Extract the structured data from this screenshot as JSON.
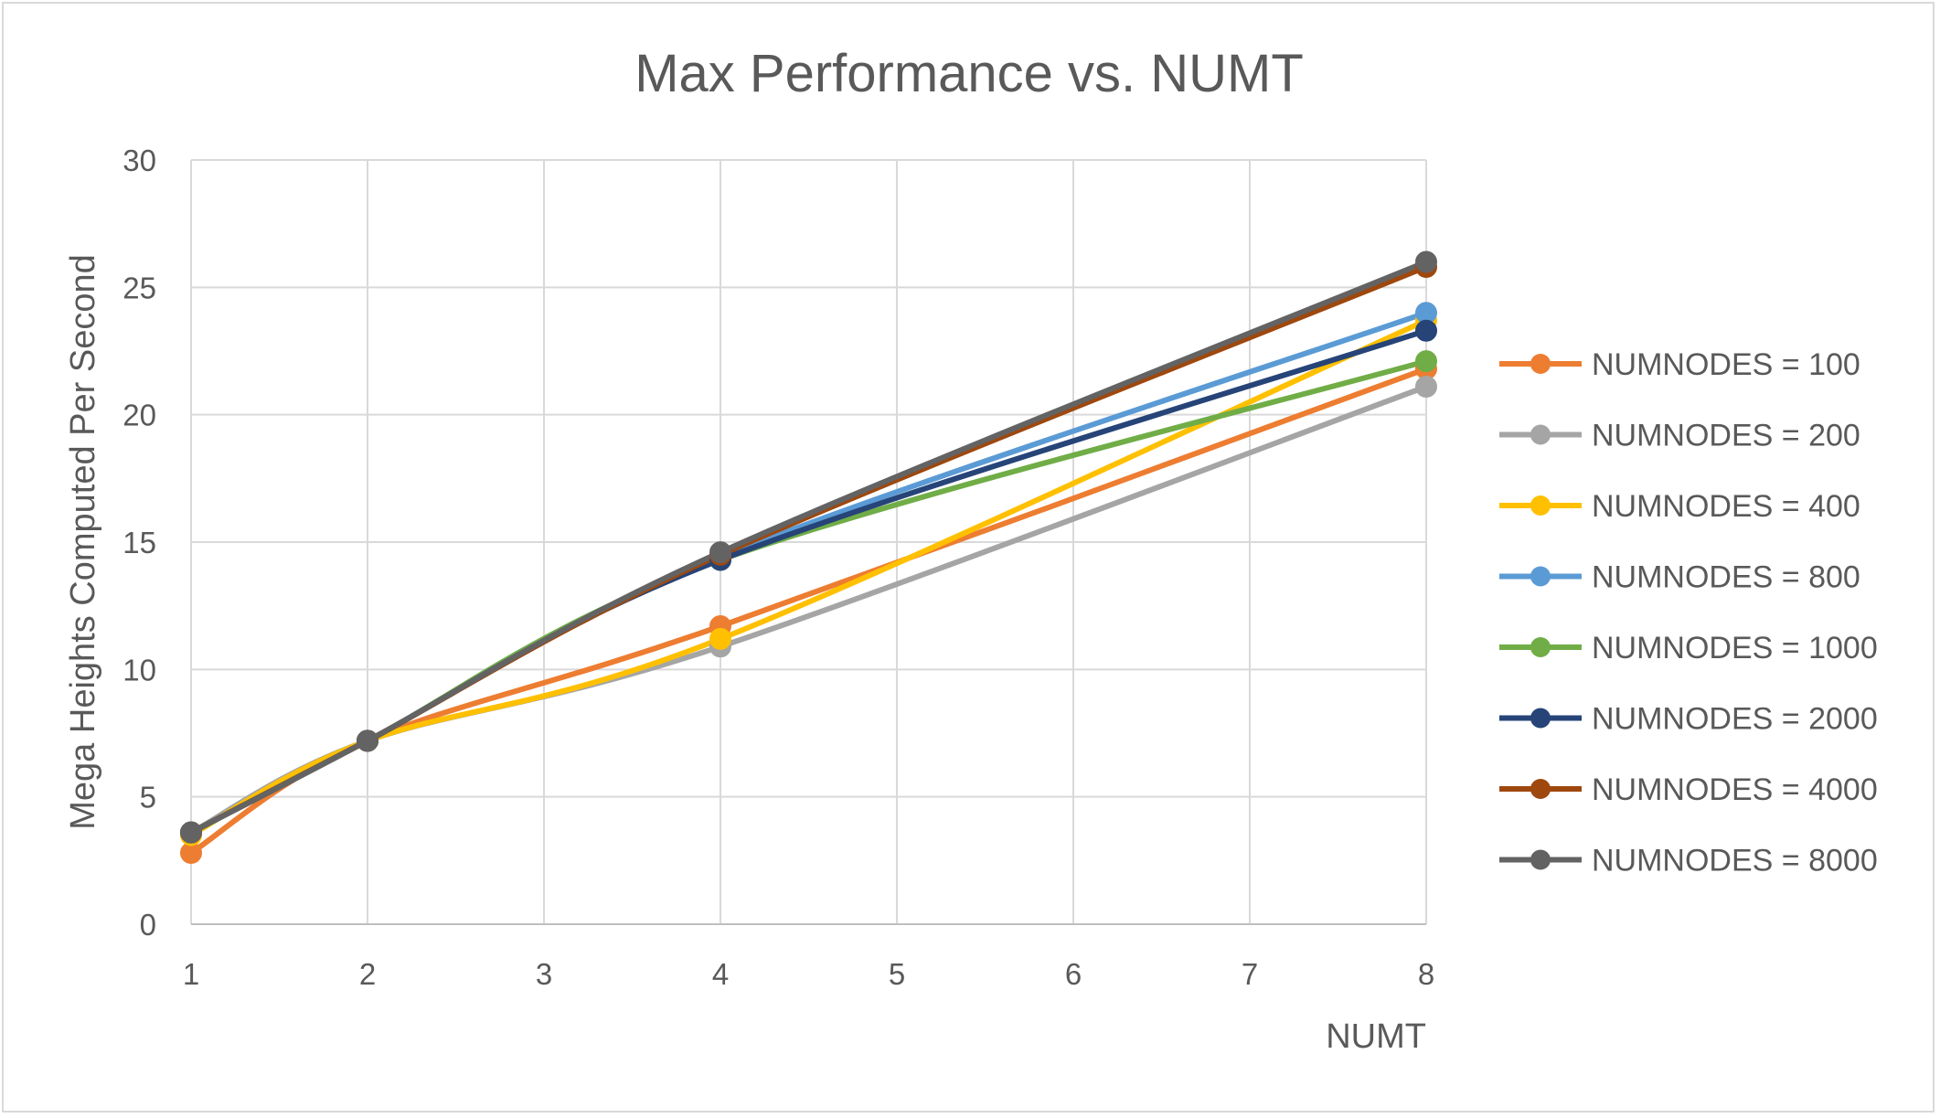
{
  "chart_data": {
    "type": "line",
    "title": "Max Performance vs. NUMT",
    "xlabel": "NUMT",
    "ylabel": "Mega Heights Computed Per Second",
    "xlim": [
      1,
      8
    ],
    "ylim": [
      0,
      30
    ],
    "x_ticks": [
      1,
      2,
      3,
      4,
      5,
      6,
      7,
      8
    ],
    "y_ticks": [
      0,
      5,
      10,
      15,
      20,
      25,
      30
    ],
    "grid": true,
    "legend_position": "right",
    "smoothed": true,
    "x": [
      1,
      2,
      4,
      8
    ],
    "series": [
      {
        "name": "NUMNODES = 100",
        "color": "#ED7D31",
        "values": [
          2.8,
          7.2,
          11.7,
          21.8
        ]
      },
      {
        "name": "NUMNODES = 200",
        "color": "#A5A5A5",
        "values": [
          3.6,
          7.2,
          10.9,
          21.1
        ]
      },
      {
        "name": "NUMNODES = 400",
        "color": "#FFC000",
        "values": [
          3.5,
          7.2,
          11.2,
          23.7
        ]
      },
      {
        "name": "NUMNODES = 800",
        "color": "#5B9BD5",
        "values": [
          3.6,
          7.2,
          14.4,
          24.0
        ]
      },
      {
        "name": "NUMNODES = 1000",
        "color": "#70AD47",
        "values": [
          3.6,
          7.2,
          14.3,
          22.1
        ]
      },
      {
        "name": "NUMNODES = 2000",
        "color": "#264478",
        "values": [
          3.6,
          7.2,
          14.3,
          23.3
        ]
      },
      {
        "name": "NUMNODES = 4000",
        "color": "#9E480E",
        "values": [
          3.6,
          7.2,
          14.5,
          25.8
        ]
      },
      {
        "name": "NUMNODES = 8000",
        "color": "#636363",
        "values": [
          3.6,
          7.2,
          14.6,
          26.0
        ]
      }
    ]
  }
}
